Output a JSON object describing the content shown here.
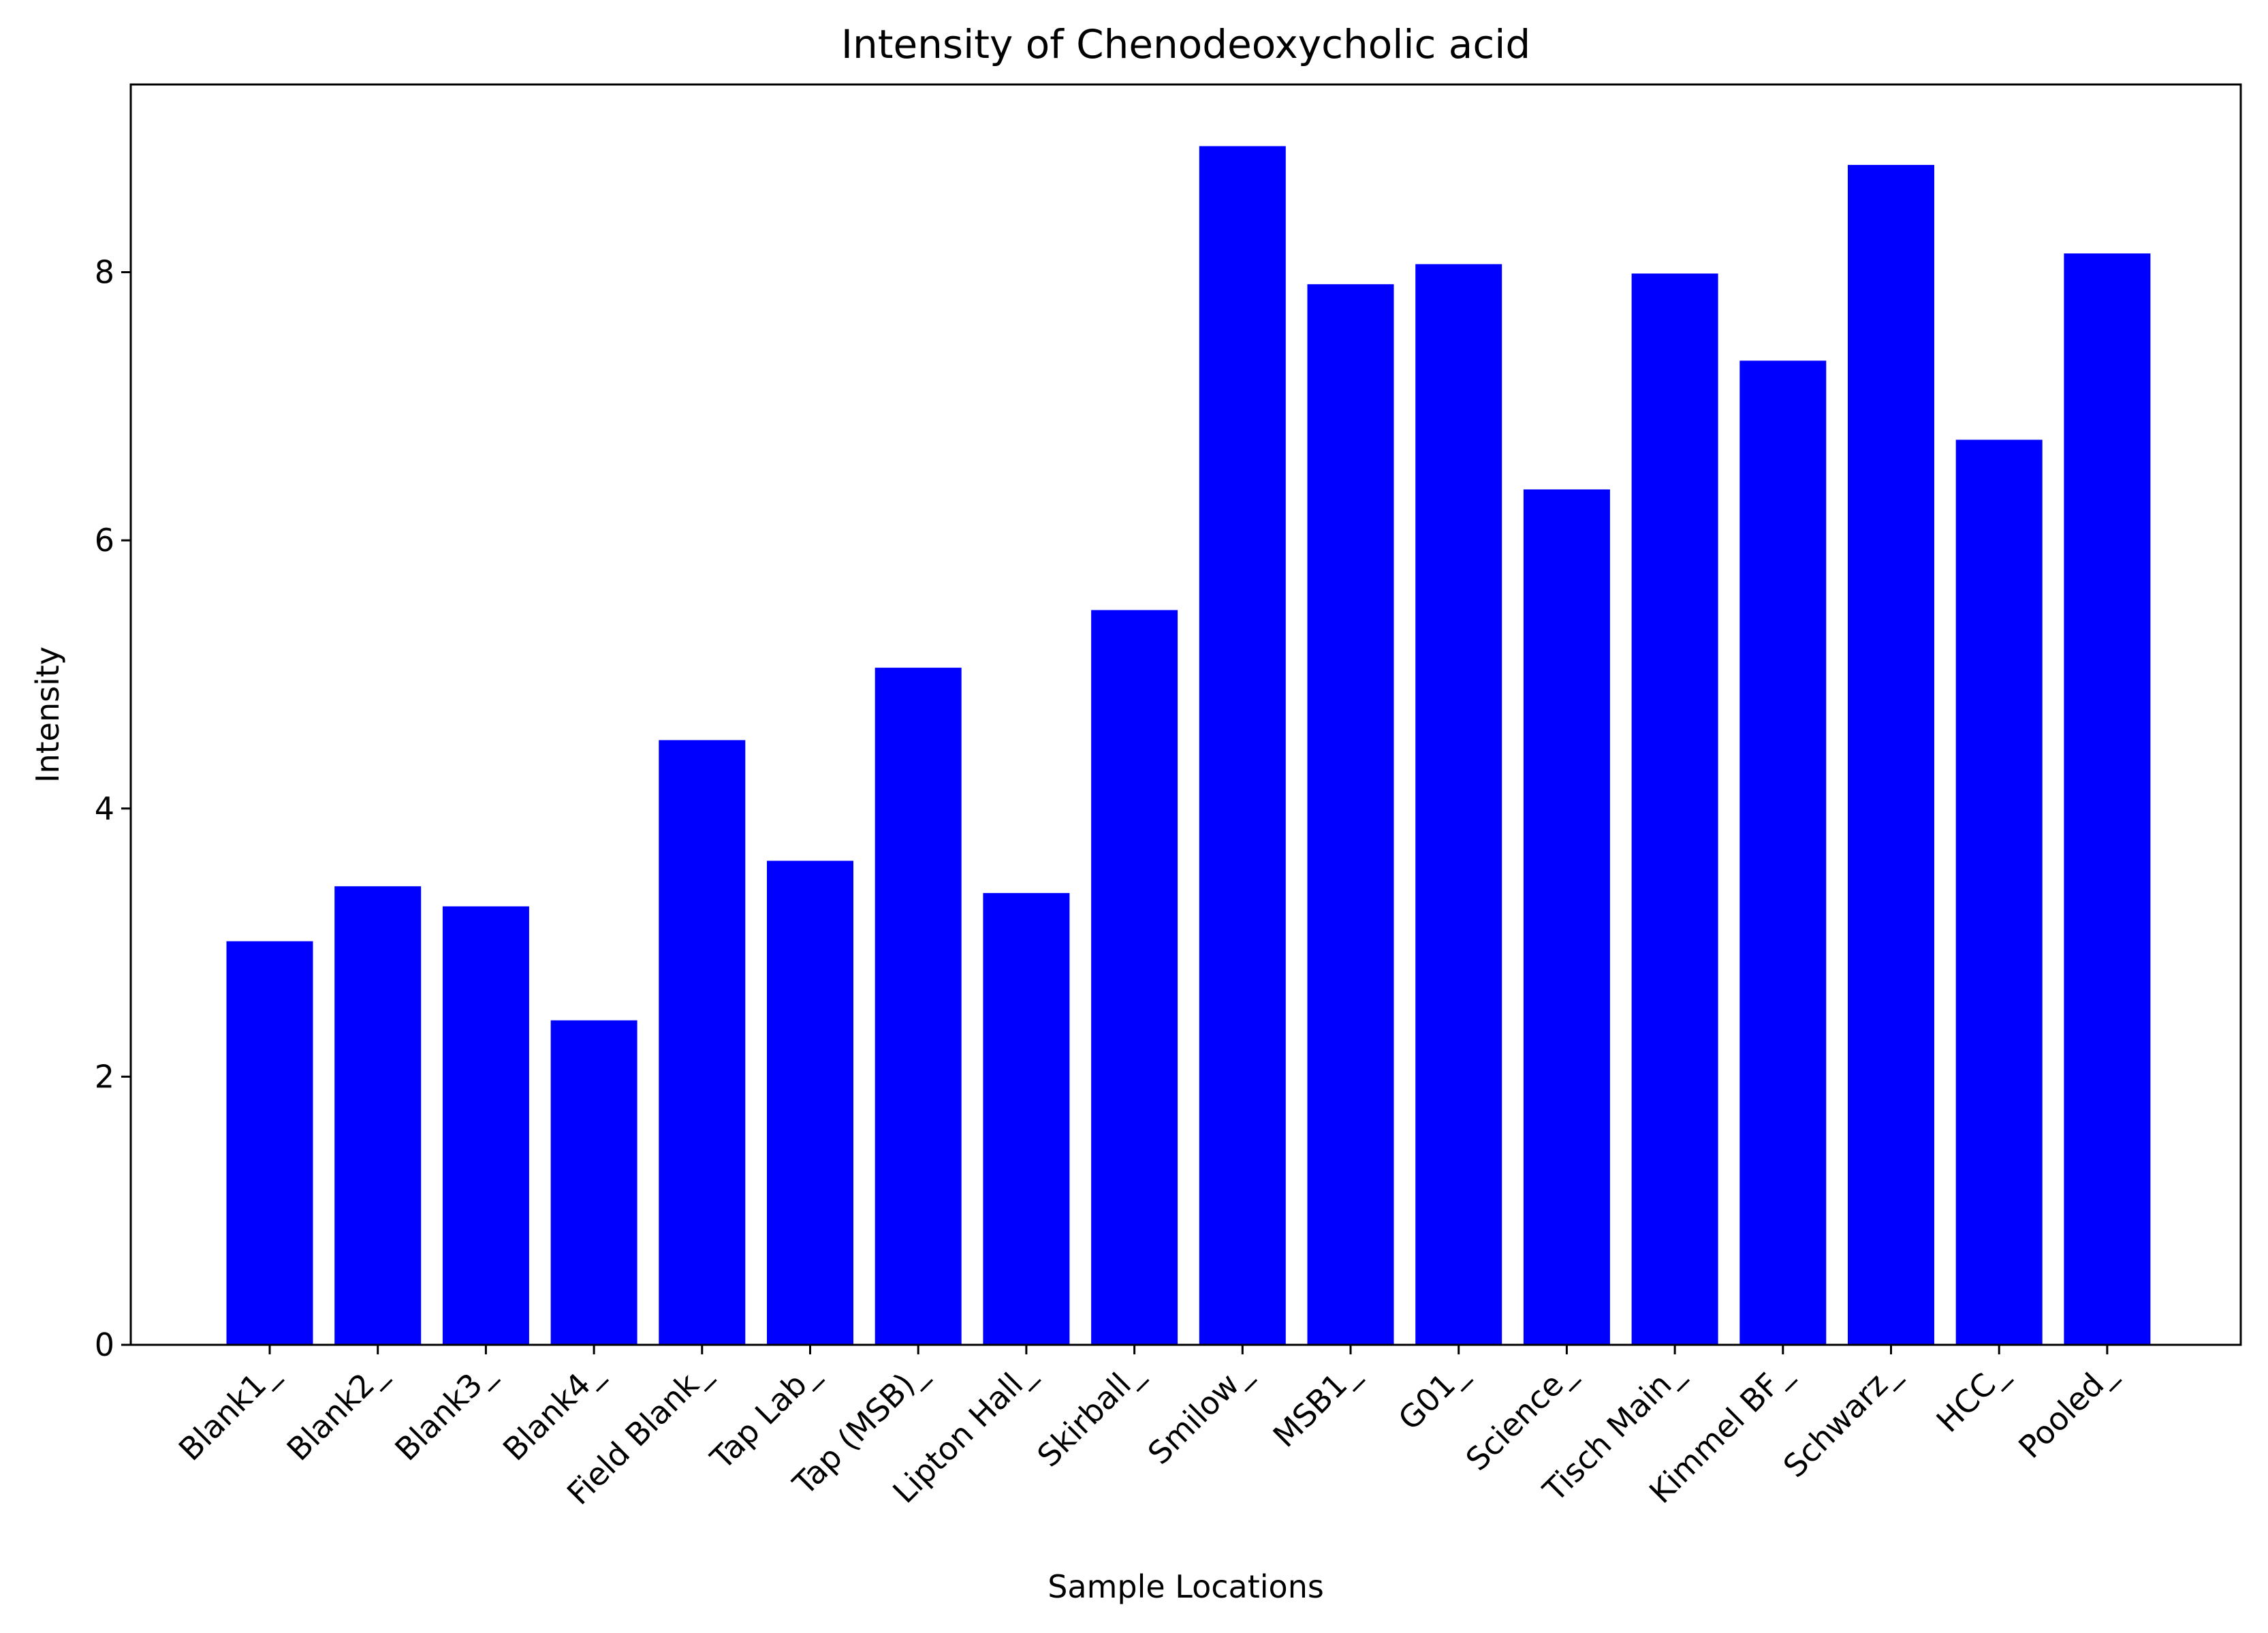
{
  "chart_data": {
    "type": "bar",
    "title": "Intensity of Chenodeoxycholic acid",
    "xlabel": "Sample Locations",
    "ylabel": "Intensity",
    "categories": [
      "Blank1_",
      "Blank2_",
      "Blank3_",
      "Blank4_",
      "Field Blank_",
      "Tap Lab_",
      "Tap (MSB)_",
      "Lipton Hall_",
      "Skirball_",
      "Smilow_",
      "MSB1_",
      "G01_",
      "Science_",
      "Tisch Main_",
      "Kimmel BF_",
      "Schwarz_",
      "HCC_",
      "Pooled_"
    ],
    "values": [
      3.01,
      3.42,
      3.27,
      2.42,
      4.51,
      3.61,
      5.05,
      3.37,
      5.48,
      8.94,
      7.91,
      8.06,
      6.38,
      7.99,
      7.34,
      8.8,
      6.75,
      8.14
    ],
    "ylim": [
      0,
      9.4
    ],
    "yticks": [
      0,
      2,
      4,
      6,
      8
    ],
    "bar_color": "#0000ff",
    "grid": false
  }
}
